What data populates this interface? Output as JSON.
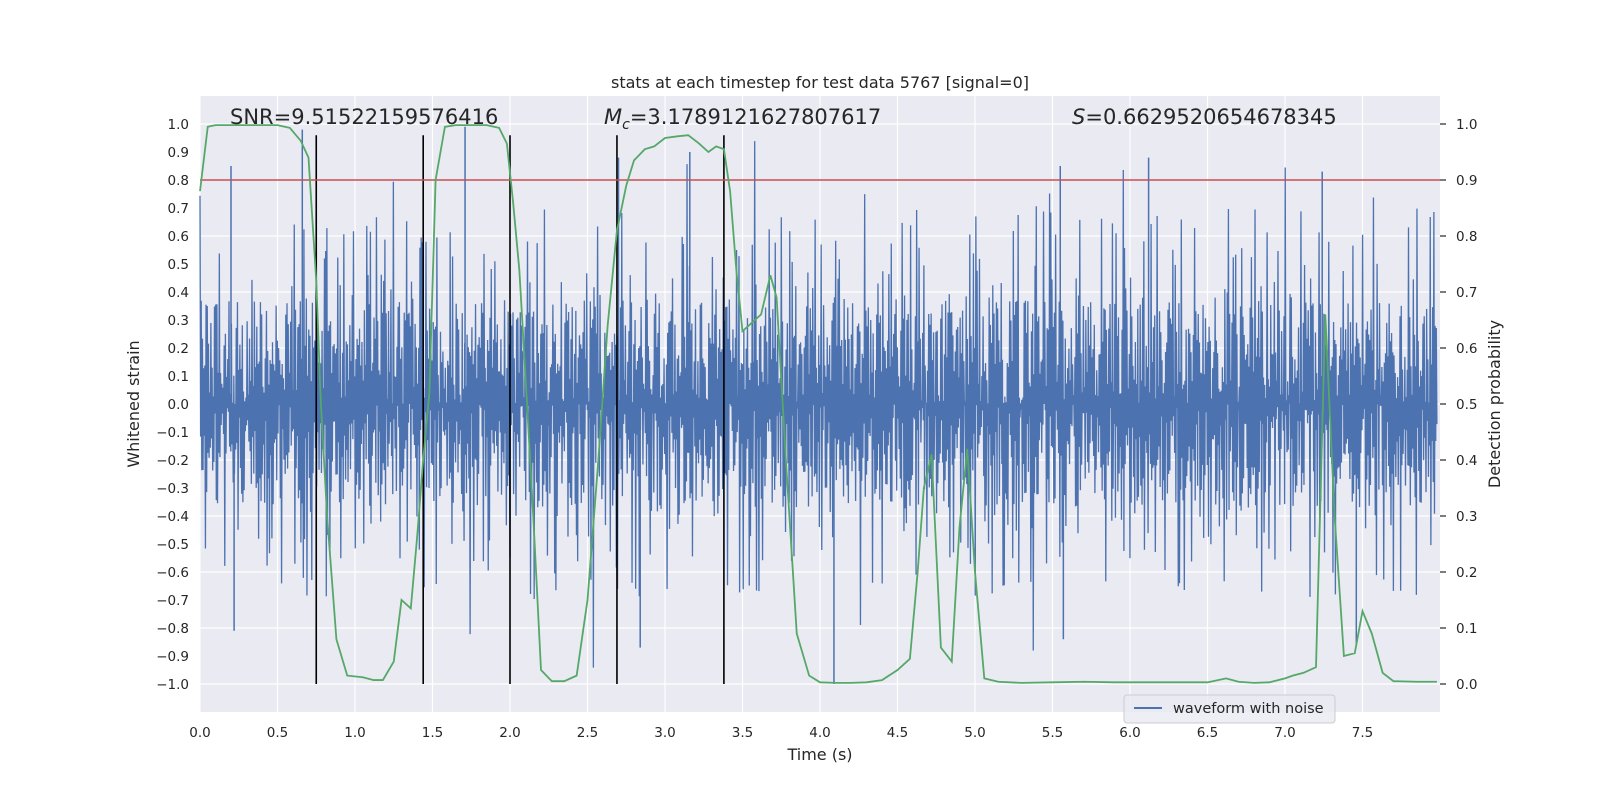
{
  "chart_data": {
    "type": "line",
    "title": "stats at each timestep for test data 5767 [signal=0]",
    "xlabel": "Time (s)",
    "ylabel": "Whitened strain",
    "ylabel_right": "Detection probability",
    "xlim": [
      0.0,
      8.0
    ],
    "ylim": [
      -1.1,
      1.1
    ],
    "ylim_right": [
      -0.05,
      1.05
    ],
    "x_ticks": [
      0.0,
      0.5,
      1.0,
      1.5,
      2.0,
      2.5,
      3.0,
      3.5,
      4.0,
      4.5,
      5.0,
      5.5,
      6.0,
      6.5,
      7.0,
      7.5
    ],
    "x_tick_labels": [
      "0.0",
      "0.5",
      "1.0",
      "1.5",
      "2.0",
      "2.5",
      "3.0",
      "3.5",
      "4.0",
      "4.5",
      "5.0",
      "5.5",
      "6.0",
      "6.5",
      "7.0",
      "7.5"
    ],
    "y_ticks": [
      1.0,
      0.9,
      0.8,
      0.7,
      0.6,
      0.5,
      0.4,
      0.3,
      0.2,
      0.1,
      0.0,
      -0.1,
      -0.2,
      -0.3,
      -0.4,
      -0.5,
      -0.6,
      -0.7,
      -0.8,
      -0.9,
      -1.0
    ],
    "y_tick_labels": [
      "1.0",
      "0.9",
      "0.8",
      "0.7",
      "0.6",
      "0.5",
      "0.4",
      "0.3",
      "0.2",
      "0.1",
      "0.0",
      "−0.1",
      "−0.2",
      "−0.3",
      "−0.4",
      "−0.5",
      "−0.6",
      "−0.7",
      "−0.8",
      "−0.9",
      "−1.0"
    ],
    "y_right_ticks": [
      1.0,
      0.9,
      0.8,
      0.7,
      0.6,
      0.5,
      0.4,
      0.3,
      0.2,
      0.1,
      0.0
    ],
    "y_right_tick_labels": [
      "1.0",
      "0.9",
      "0.8",
      "0.7",
      "0.6",
      "0.5",
      "0.4",
      "0.3",
      "0.2",
      "0.1",
      "0.0"
    ],
    "annotations": {
      "snr": "SNR=9.515221595764​16",
      "mc_symbol": "M",
      "mc_sub": "c",
      "mc_value": "=3.1789121627807617",
      "s_symbol": "S",
      "s_value": "=0.6629520654678345"
    },
    "legend": {
      "label": "waveform with noise",
      "location": "lower-right"
    },
    "threshold": {
      "value": 0.9,
      "axis": "right",
      "color": "#c44e52"
    },
    "vertical_lines": [
      0.75,
      1.44,
      2.0,
      2.69,
      3.38
    ],
    "vertical_line_range": [
      -1.0,
      0.98
    ],
    "waveform": {
      "name": "waveform with noise",
      "color": "#4c72b0",
      "t_start": 0.0,
      "t_end": 7.98,
      "samples": 2048,
      "core_amplitude": 0.37,
      "peak_max": 0.99,
      "peak_min": -1.0
    },
    "probability_series": {
      "name": "detection probability",
      "color": "#55a868",
      "x": [
        0.0,
        0.05,
        0.1,
        0.2,
        0.3,
        0.4,
        0.5,
        0.58,
        0.65,
        0.7,
        0.75,
        0.78,
        0.82,
        0.88,
        0.95,
        1.05,
        1.12,
        1.18,
        1.25,
        1.3,
        1.36,
        1.4,
        1.44,
        1.48,
        1.52,
        1.58,
        1.65,
        1.75,
        1.85,
        1.93,
        1.98,
        2.02,
        2.06,
        2.1,
        2.15,
        2.2,
        2.27,
        2.35,
        2.43,
        2.5,
        2.57,
        2.63,
        2.69,
        2.75,
        2.8,
        2.87,
        2.93,
        3.0,
        3.08,
        3.15,
        3.22,
        3.28,
        3.33,
        3.38,
        3.42,
        3.46,
        3.5,
        3.56,
        3.62,
        3.68,
        3.72,
        3.78,
        3.85,
        3.93,
        4.0,
        4.1,
        4.2,
        4.3,
        4.4,
        4.5,
        4.58,
        4.63,
        4.67,
        4.72,
        4.78,
        4.85,
        4.9,
        4.95,
        5.0,
        5.06,
        5.15,
        5.3,
        5.5,
        5.7,
        5.9,
        6.1,
        6.3,
        6.5,
        6.62,
        6.7,
        6.8,
        6.9,
        7.0,
        7.05,
        7.12,
        7.2,
        7.26,
        7.32,
        7.38,
        7.45,
        7.5,
        7.56,
        7.63,
        7.7,
        7.85,
        7.98
      ],
      "y": [
        0.88,
        0.995,
        0.998,
        0.998,
        0.998,
        0.998,
        0.998,
        0.993,
        0.97,
        0.94,
        0.72,
        0.5,
        0.3,
        0.08,
        0.015,
        0.012,
        0.007,
        0.007,
        0.04,
        0.15,
        0.135,
        0.26,
        0.4,
        0.52,
        0.9,
        0.995,
        0.998,
        0.998,
        0.998,
        0.993,
        0.965,
        0.86,
        0.74,
        0.55,
        0.3,
        0.025,
        0.005,
        0.005,
        0.015,
        0.15,
        0.4,
        0.64,
        0.81,
        0.89,
        0.935,
        0.955,
        0.96,
        0.975,
        0.978,
        0.98,
        0.965,
        0.95,
        0.96,
        0.955,
        0.88,
        0.74,
        0.63,
        0.645,
        0.66,
        0.73,
        0.69,
        0.4,
        0.09,
        0.015,
        0.003,
        0.002,
        0.002,
        0.003,
        0.007,
        0.025,
        0.045,
        0.2,
        0.35,
        0.41,
        0.065,
        0.04,
        0.28,
        0.42,
        0.2,
        0.01,
        0.004,
        0.002,
        0.003,
        0.004,
        0.003,
        0.003,
        0.003,
        0.003,
        0.01,
        0.004,
        0.002,
        0.003,
        0.01,
        0.015,
        0.02,
        0.03,
        0.66,
        0.3,
        0.05,
        0.055,
        0.13,
        0.09,
        0.02,
        0.005,
        0.004,
        0.004
      ]
    }
  }
}
